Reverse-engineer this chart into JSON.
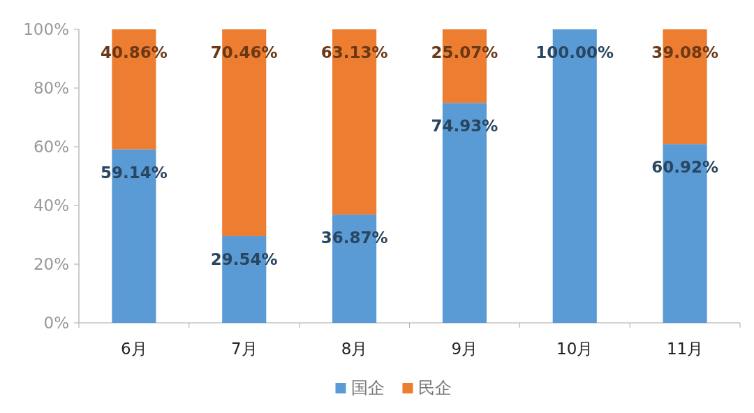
{
  "chart_data": {
    "type": "bar",
    "stacked": true,
    "categories": [
      "6月",
      "7月",
      "8月",
      "9月",
      "10月",
      "11月"
    ],
    "series": [
      {
        "name": "国企",
        "color": "#5b9bd5",
        "values": [
          59.14,
          29.54,
          36.87,
          74.93,
          100.0,
          60.92
        ],
        "value_labels": [
          "59.14%",
          "29.54%",
          "36.87%",
          "74.93%",
          "100.00%",
          "60.92%"
        ]
      },
      {
        "name": "民企",
        "color": "#ed7d31",
        "values": [
          40.86,
          70.46,
          63.13,
          25.07,
          0,
          39.08
        ],
        "value_labels": [
          "40.86%",
          "70.46%",
          "63.13%",
          "25.07%",
          null,
          "39.08%"
        ]
      }
    ],
    "ylim": [
      0,
      100
    ],
    "yticks": [
      {
        "value": 0,
        "label": "0%"
      },
      {
        "value": 20,
        "label": "20%"
      },
      {
        "value": 40,
        "label": "40%"
      },
      {
        "value": 60,
        "label": "60%"
      },
      {
        "value": 80,
        "label": "80%"
      },
      {
        "value": 100,
        "label": "100%"
      }
    ],
    "grid": false,
    "legend": "bottom"
  }
}
